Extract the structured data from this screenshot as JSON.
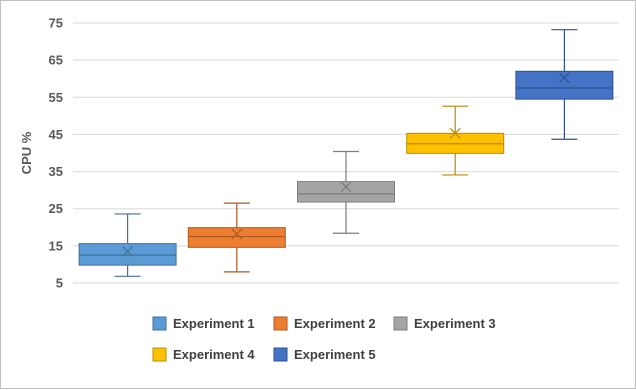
{
  "chart_data": {
    "type": "box",
    "title": "",
    "xlabel": "",
    "ylabel": "CPU %",
    "ylim": [
      5,
      75
    ],
    "yticks": [
      5,
      15,
      25,
      35,
      45,
      55,
      65,
      75
    ],
    "grid": true,
    "legend_position": "bottom",
    "series": [
      {
        "name": "Experiment 1",
        "color": "#5B9BD5",
        "edge": "#41719C",
        "min": 6.8,
        "q1": 9.8,
        "median": 12.5,
        "q3": 15.6,
        "max": 23.6,
        "mean": 13.5
      },
      {
        "name": "Experiment 2",
        "color": "#ED7D31",
        "edge": "#AE5A21",
        "min": 8.0,
        "q1": 14.6,
        "median": 17.5,
        "q3": 19.9,
        "max": 26.5,
        "mean": 18.2
      },
      {
        "name": "Experiment 3",
        "color": "#A5A5A5",
        "edge": "#7C7C7C",
        "min": 18.4,
        "q1": 26.8,
        "median": 29.0,
        "q3": 32.3,
        "max": 40.4,
        "mean": 30.9
      },
      {
        "name": "Experiment 4",
        "color": "#FFC000",
        "edge": "#BC8C00",
        "min": 34.1,
        "q1": 39.9,
        "median": 42.5,
        "q3": 45.3,
        "max": 52.6,
        "mean": 45.3
      },
      {
        "name": "Experiment 5",
        "color": "#4472C4",
        "edge": "#2F528F",
        "min": 43.7,
        "q1": 54.5,
        "median": 57.5,
        "q3": 62.0,
        "max": 73.2,
        "mean": 60.2
      }
    ]
  }
}
